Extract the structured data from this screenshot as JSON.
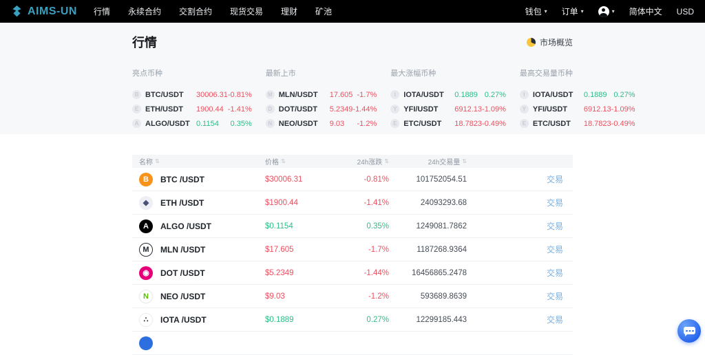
{
  "colors": {
    "up": "#2dbd85",
    "down": "#ec4f5e",
    "accent": "#3aa0bf",
    "link": "#79afe2",
    "nav_bg": "#000000",
    "hero_bg": "#f7f8fa",
    "pie_yellow": "#f8c63a",
    "next_row_icon_bg": "#2d6fe0"
  },
  "navbar": {
    "brand": "AIMS-UN",
    "items": [
      "行情",
      "永续合约",
      "交割合约",
      "现货交易",
      "理财",
      "矿池"
    ],
    "wallet": "钱包",
    "orders": "订单",
    "language": "简体中文",
    "currency": "USD",
    "caret_icon": "▾"
  },
  "page": {
    "title": "行情",
    "overview_label": "市场概览"
  },
  "highlights": [
    {
      "title": "亮点币种",
      "rows": [
        {
          "initial": "B",
          "pair": "BTC/USDT",
          "price": "30006.31",
          "change": "-0.81%",
          "dir": "down"
        },
        {
          "initial": "E",
          "pair": "ETH/USDT",
          "price": "1900.44",
          "change": "-1.41%",
          "dir": "down"
        },
        {
          "initial": "A",
          "pair": "ALGO/USDT",
          "price": "0.1154",
          "change": "0.35%",
          "dir": "up"
        }
      ]
    },
    {
      "title": "最新上市",
      "rows": [
        {
          "initial": "M",
          "pair": "MLN/USDT",
          "price": "17.605",
          "change": "-1.7%",
          "dir": "down"
        },
        {
          "initial": "D",
          "pair": "DOT/USDT",
          "price": "5.2349",
          "change": "-1.44%",
          "dir": "down"
        },
        {
          "initial": "N",
          "pair": "NEO/USDT",
          "price": "9.03",
          "change": "-1.2%",
          "dir": "down"
        }
      ]
    },
    {
      "title": "最大涨幅币种",
      "rows": [
        {
          "initial": "I",
          "pair": "IOTA/USDT",
          "price": "0.1889",
          "change": "0.27%",
          "dir": "up"
        },
        {
          "initial": "Y",
          "pair": "YFI/USDT",
          "price": "6912.13",
          "change": "-1.09%",
          "dir": "down"
        },
        {
          "initial": "E",
          "pair": "ETC/USDT",
          "price": "18.7823",
          "change": "-0.49%",
          "dir": "down"
        }
      ]
    },
    {
      "title": "最高交易量币种",
      "rows": [
        {
          "initial": "I",
          "pair": "IOTA/USDT",
          "price": "0.1889",
          "change": "0.27%",
          "dir": "up"
        },
        {
          "initial": "Y",
          "pair": "YFI/USDT",
          "price": "6912.13",
          "change": "-1.09%",
          "dir": "down"
        },
        {
          "initial": "E",
          "pair": "ETC/USDT",
          "price": "18.7823",
          "change": "-0.49%",
          "dir": "down"
        }
      ]
    }
  ],
  "table": {
    "headers": {
      "name": "名称",
      "price": "价格",
      "change": "24h涨跌",
      "volume": "24h交易量"
    },
    "sort_icon": "⇅",
    "action_label": "交易",
    "rows": [
      {
        "icon": "btc",
        "pair": "BTC /USDT",
        "price": "$30006.31",
        "change": "-0.81%",
        "volume": "101752054.51",
        "dir": "down"
      },
      {
        "icon": "eth",
        "pair": "ETH /USDT",
        "price": "$1900.44",
        "change": "-1.41%",
        "volume": "24093293.68",
        "dir": "down"
      },
      {
        "icon": "algo",
        "pair": "ALGO /USDT",
        "price": "$0.1154",
        "change": "0.35%",
        "volume": "1249081.7862",
        "dir": "up"
      },
      {
        "icon": "mln",
        "pair": "MLN /USDT",
        "price": "$17.605",
        "change": "-1.7%",
        "volume": "1187268.9364",
        "dir": "down"
      },
      {
        "icon": "dot",
        "pair": "DOT /USDT",
        "price": "$5.2349",
        "change": "-1.44%",
        "volume": "16456865.2478",
        "dir": "down"
      },
      {
        "icon": "neo",
        "pair": "NEO /USDT",
        "price": "$9.03",
        "change": "-1.2%",
        "volume": "593689.8639",
        "dir": "down"
      },
      {
        "icon": "iota",
        "pair": "IOTA /USDT",
        "price": "$0.1889",
        "change": "0.27%",
        "volume": "12299185.443",
        "dir": "up"
      }
    ]
  },
  "coin_icons": {
    "btc": {
      "glyph": "B",
      "bg": "#f7931a",
      "color": "#ffffff",
      "border": "none"
    },
    "eth": {
      "glyph": "◆",
      "bg": "#edeff4",
      "color": "#4a5078",
      "border": "none"
    },
    "algo": {
      "glyph": "A",
      "bg": "#000000",
      "color": "#ffffff",
      "border": "none"
    },
    "mln": {
      "glyph": "M",
      "bg": "#ffffff",
      "color": "#1e2329",
      "border": "1.5px solid #2a2e39"
    },
    "dot": {
      "glyph": "◉",
      "bg": "#e6007a",
      "color": "#ffffff",
      "border": "none"
    },
    "neo": {
      "glyph": "N",
      "bg": "#ffffff",
      "color": "#58bf00",
      "border": "1px solid #e4e8ec"
    },
    "iota": {
      "glyph": "∴",
      "bg": "#ffffff",
      "color": "#343b46",
      "border": "1px solid #e9ecef"
    }
  }
}
